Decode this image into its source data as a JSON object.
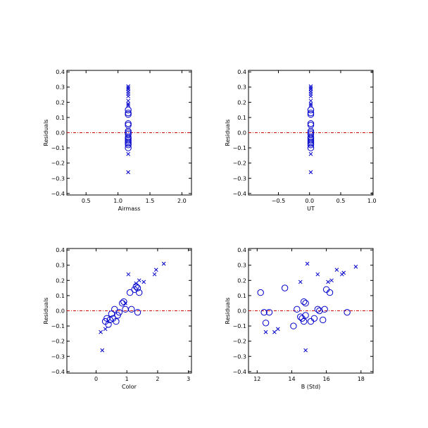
{
  "colors": {
    "marker": "#0000cc",
    "zero_line": "#cc0000",
    "axes": "#000000"
  },
  "chart_data": [
    {
      "type": "scatter",
      "xlabel": "Airmass",
      "ylabel": "Residuals",
      "xlim": [
        0.2,
        2.15
      ],
      "ylim": [
        -0.41,
        0.41
      ],
      "xticks": [
        0.5,
        1.0,
        1.5,
        2.0
      ],
      "xtick_labels": [
        "0.5",
        "1.0",
        "1.5",
        "2.0"
      ],
      "yticks": [
        0.4,
        0.3,
        0.2,
        0.1,
        0.0,
        -0.1,
        -0.2,
        -0.3,
        -0.4
      ],
      "ytick_labels": [
        "0.4",
        "0.3",
        "0.2",
        "0.1",
        "0.0",
        "−0.1",
        "−0.2",
        "−0.3",
        "−0.4"
      ],
      "zero_line": 0,
      "series": [
        {
          "marker": "x",
          "points": [
            [
              1.16,
              0.305
            ],
            [
              1.16,
              0.295
            ],
            [
              1.16,
              0.285
            ],
            [
              1.16,
              0.27
            ],
            [
              1.16,
              0.255
            ],
            [
              1.16,
              0.24
            ],
            [
              1.16,
              0.21
            ],
            [
              1.16,
              0.19
            ],
            [
              1.16,
              0.18
            ],
            [
              1.16,
              -0.14
            ],
            [
              1.16,
              -0.26
            ]
          ]
        },
        {
          "marker": "o",
          "points": [
            [
              1.16,
              0.15
            ],
            [
              1.16,
              0.13
            ],
            [
              1.16,
              0.12
            ],
            [
              1.16,
              0.06
            ],
            [
              1.16,
              0.05
            ],
            [
              1.16,
              0.01
            ],
            [
              1.16,
              0.0
            ],
            [
              1.16,
              -0.01
            ],
            [
              1.16,
              -0.03
            ],
            [
              1.16,
              -0.04
            ],
            [
              1.16,
              -0.05
            ],
            [
              1.16,
              -0.06
            ],
            [
              1.16,
              -0.07
            ],
            [
              1.16,
              -0.08
            ],
            [
              1.16,
              -0.1
            ]
          ]
        }
      ]
    },
    {
      "type": "scatter",
      "xlabel": "UT",
      "ylabel": "Residuals",
      "xlim": [
        -0.98,
        1.02
      ],
      "ylim": [
        -0.41,
        0.41
      ],
      "xticks": [
        -0.5,
        0.0,
        0.5,
        1.0
      ],
      "xtick_labels": [
        "−0.5",
        "0.0",
        "0.5",
        "1.0"
      ],
      "yticks": [
        0.4,
        0.3,
        0.2,
        0.1,
        0.0,
        -0.1,
        -0.2,
        -0.3,
        -0.4
      ],
      "ytick_labels": [
        "0.4",
        "0.3",
        "0.2",
        "0.1",
        "0.0",
        "−0.1",
        "−0.2",
        "−0.3",
        "−0.4"
      ],
      "zero_line": 0,
      "series": [
        {
          "marker": "x",
          "points": [
            [
              0.02,
              0.305
            ],
            [
              0.02,
              0.295
            ],
            [
              0.02,
              0.285
            ],
            [
              0.02,
              0.27
            ],
            [
              0.02,
              0.255
            ],
            [
              0.02,
              0.24
            ],
            [
              0.02,
              0.21
            ],
            [
              0.02,
              0.19
            ],
            [
              0.02,
              0.18
            ],
            [
              0.02,
              -0.14
            ],
            [
              0.02,
              -0.26
            ]
          ]
        },
        {
          "marker": "o",
          "points": [
            [
              0.02,
              0.15
            ],
            [
              0.02,
              0.13
            ],
            [
              0.02,
              0.12
            ],
            [
              0.02,
              0.06
            ],
            [
              0.02,
              0.05
            ],
            [
              0.02,
              0.01
            ],
            [
              0.02,
              0.0
            ],
            [
              0.02,
              -0.01
            ],
            [
              0.02,
              -0.03
            ],
            [
              0.02,
              -0.04
            ],
            [
              0.02,
              -0.05
            ],
            [
              0.02,
              -0.06
            ],
            [
              0.02,
              -0.07
            ],
            [
              0.02,
              -0.08
            ],
            [
              0.02,
              -0.1
            ]
          ]
        }
      ]
    },
    {
      "type": "scatter",
      "xlabel": "Color",
      "ylabel": "Residuals",
      "xlim": [
        -0.95,
        3.1
      ],
      "ylim": [
        -0.41,
        0.41
      ],
      "xticks": [
        0,
        1,
        2,
        3
      ],
      "xtick_labels": [
        "0",
        "1",
        "2",
        "3"
      ],
      "yticks": [
        0.4,
        0.3,
        0.2,
        0.1,
        0.0,
        -0.1,
        -0.2,
        -0.3,
        -0.4
      ],
      "ytick_labels": [
        "0.4",
        "0.3",
        "0.2",
        "0.1",
        "0.0",
        "−0.1",
        "−0.2",
        "−0.3",
        "−0.4"
      ],
      "zero_line": 0,
      "series": [
        {
          "marker": "x",
          "points": [
            [
              0.15,
              -0.14
            ],
            [
              0.2,
              -0.26
            ],
            [
              0.3,
              -0.12
            ],
            [
              1.05,
              0.24
            ],
            [
              1.3,
              0.18
            ],
            [
              1.4,
              0.2
            ],
            [
              1.55,
              0.19
            ],
            [
              1.9,
              0.24
            ],
            [
              1.95,
              0.27
            ],
            [
              2.2,
              0.31
            ],
            [
              0.95,
              0.05
            ]
          ]
        },
        {
          "marker": "o",
          "points": [
            [
              0.3,
              -0.07
            ],
            [
              0.35,
              -0.05
            ],
            [
              0.4,
              -0.09
            ],
            [
              0.45,
              -0.06
            ],
            [
              0.5,
              -0.02
            ],
            [
              0.55,
              -0.05
            ],
            [
              0.6,
              0.01
            ],
            [
              0.65,
              -0.07
            ],
            [
              0.7,
              -0.03
            ],
            [
              0.75,
              -0.01
            ],
            [
              0.85,
              0.05
            ],
            [
              0.9,
              0.06
            ],
            [
              0.95,
              0.01
            ],
            [
              1.1,
              0.12
            ],
            [
              1.15,
              0.01
            ],
            [
              1.25,
              0.14
            ],
            [
              1.3,
              0.16
            ],
            [
              1.35,
              0.15
            ],
            [
              1.4,
              0.12
            ],
            [
              1.35,
              -0.01
            ]
          ]
        }
      ]
    },
    {
      "type": "scatter",
      "xlabel": "B (Std)",
      "ylabel": "Residuals",
      "xlim": [
        11.5,
        18.7
      ],
      "ylim": [
        -0.41,
        0.41
      ],
      "xticks": [
        12,
        14,
        16,
        18
      ],
      "xtick_labels": [
        "12",
        "14",
        "16",
        "18"
      ],
      "yticks": [
        0.4,
        0.3,
        0.2,
        0.1,
        0.0,
        -0.1,
        -0.2,
        -0.3,
        -0.4
      ],
      "ytick_labels": [
        "0.4",
        "0.3",
        "0.2",
        "0.1",
        "0.0",
        "−0.1",
        "−0.2",
        "−0.3",
        "−0.4"
      ],
      "zero_line": 0,
      "series": [
        {
          "marker": "x",
          "points": [
            [
              12.5,
              -0.14
            ],
            [
              13.0,
              -0.14
            ],
            [
              13.2,
              -0.12
            ],
            [
              14.5,
              0.19
            ],
            [
              14.9,
              0.31
            ],
            [
              14.8,
              -0.26
            ],
            [
              15.5,
              0.24
            ],
            [
              16.1,
              0.19
            ],
            [
              16.3,
              0.2
            ],
            [
              16.6,
              0.27
            ],
            [
              16.9,
              0.24
            ],
            [
              17.0,
              0.25
            ],
            [
              17.7,
              0.29
            ]
          ]
        },
        {
          "marker": "o",
          "points": [
            [
              12.2,
              0.12
            ],
            [
              12.4,
              -0.01
            ],
            [
              12.5,
              -0.08
            ],
            [
              12.7,
              -0.01
            ],
            [
              13.6,
              0.15
            ],
            [
              14.1,
              -0.1
            ],
            [
              14.3,
              0.01
            ],
            [
              14.5,
              -0.04
            ],
            [
              14.6,
              -0.05
            ],
            [
              14.8,
              0.05
            ],
            [
              14.7,
              0.06
            ],
            [
              14.7,
              -0.07
            ],
            [
              14.8,
              -0.03
            ],
            [
              15.1,
              -0.07
            ],
            [
              15.3,
              -0.05
            ],
            [
              15.5,
              0.01
            ],
            [
              15.6,
              0.0
            ],
            [
              15.8,
              -0.06
            ],
            [
              15.9,
              0.01
            ],
            [
              16.0,
              0.14
            ],
            [
              16.2,
              0.12
            ],
            [
              17.2,
              -0.01
            ]
          ]
        }
      ]
    }
  ]
}
